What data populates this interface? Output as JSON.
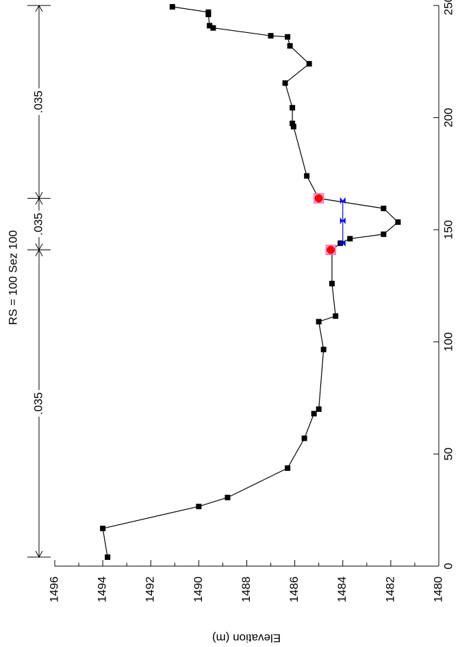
{
  "chart_data": {
    "type": "line",
    "title": "RS = 100 Sez 100",
    "ylabel": "Elevation (m)",
    "xlim": [
      0,
      250
    ],
    "xticks": [
      0,
      50,
      100,
      150,
      200,
      250
    ],
    "ylim": [
      1480,
      1496
    ],
    "yticks": [
      1480,
      1482,
      1484,
      1486,
      1488,
      1490,
      1492,
      1494,
      1496
    ],
    "yminorticks": [
      1481,
      1483,
      1485,
      1487,
      1489,
      1491,
      1493,
      1495
    ],
    "series": [
      {
        "color": "#000000",
        "x": [
          4,
          16.8,
          26.6,
          30.6,
          43.7,
          57,
          68,
          70,
          96.6,
          109,
          111.5,
          126,
          141,
          144,
          146,
          148,
          153.4,
          159.5,
          164,
          174,
          196,
          197.4,
          204.4,
          215.4,
          224,
          232,
          236,
          236.5,
          240,
          241,
          246,
          247,
          249.4
        ],
        "values": [
          1493.8,
          1494.0,
          1490.0,
          1488.8,
          1486.3,
          1485.6,
          1485.2,
          1485.0,
          1484.8,
          1485.0,
          1484.3,
          1484.45,
          1484.45,
          1484.1,
          1483.7,
          1482.3,
          1481.7,
          1482.3,
          1485.0,
          1485.5,
          1486.05,
          1486.1,
          1486.1,
          1486.4,
          1485.4,
          1486.2,
          1486.3,
          1487.0,
          1489.4,
          1489.55,
          1489.6,
          1489.6,
          1491.1
        ]
      },
      {
        "color": "#0000ff",
        "x": [
          144,
          154,
          163
        ],
        "values": [
          1484.0,
          1484.0,
          1484.0
        ]
      }
    ],
    "bank_stations": {
      "color": "#ff0000",
      "x": [
        141,
        164
      ],
      "values": [
        1484.5,
        1485.0
      ]
    },
    "mannings_n": {
      "labels": [
        ".035",
        ".035",
        ".035"
      ],
      "stations": [
        4,
        141,
        164,
        250
      ]
    }
  }
}
